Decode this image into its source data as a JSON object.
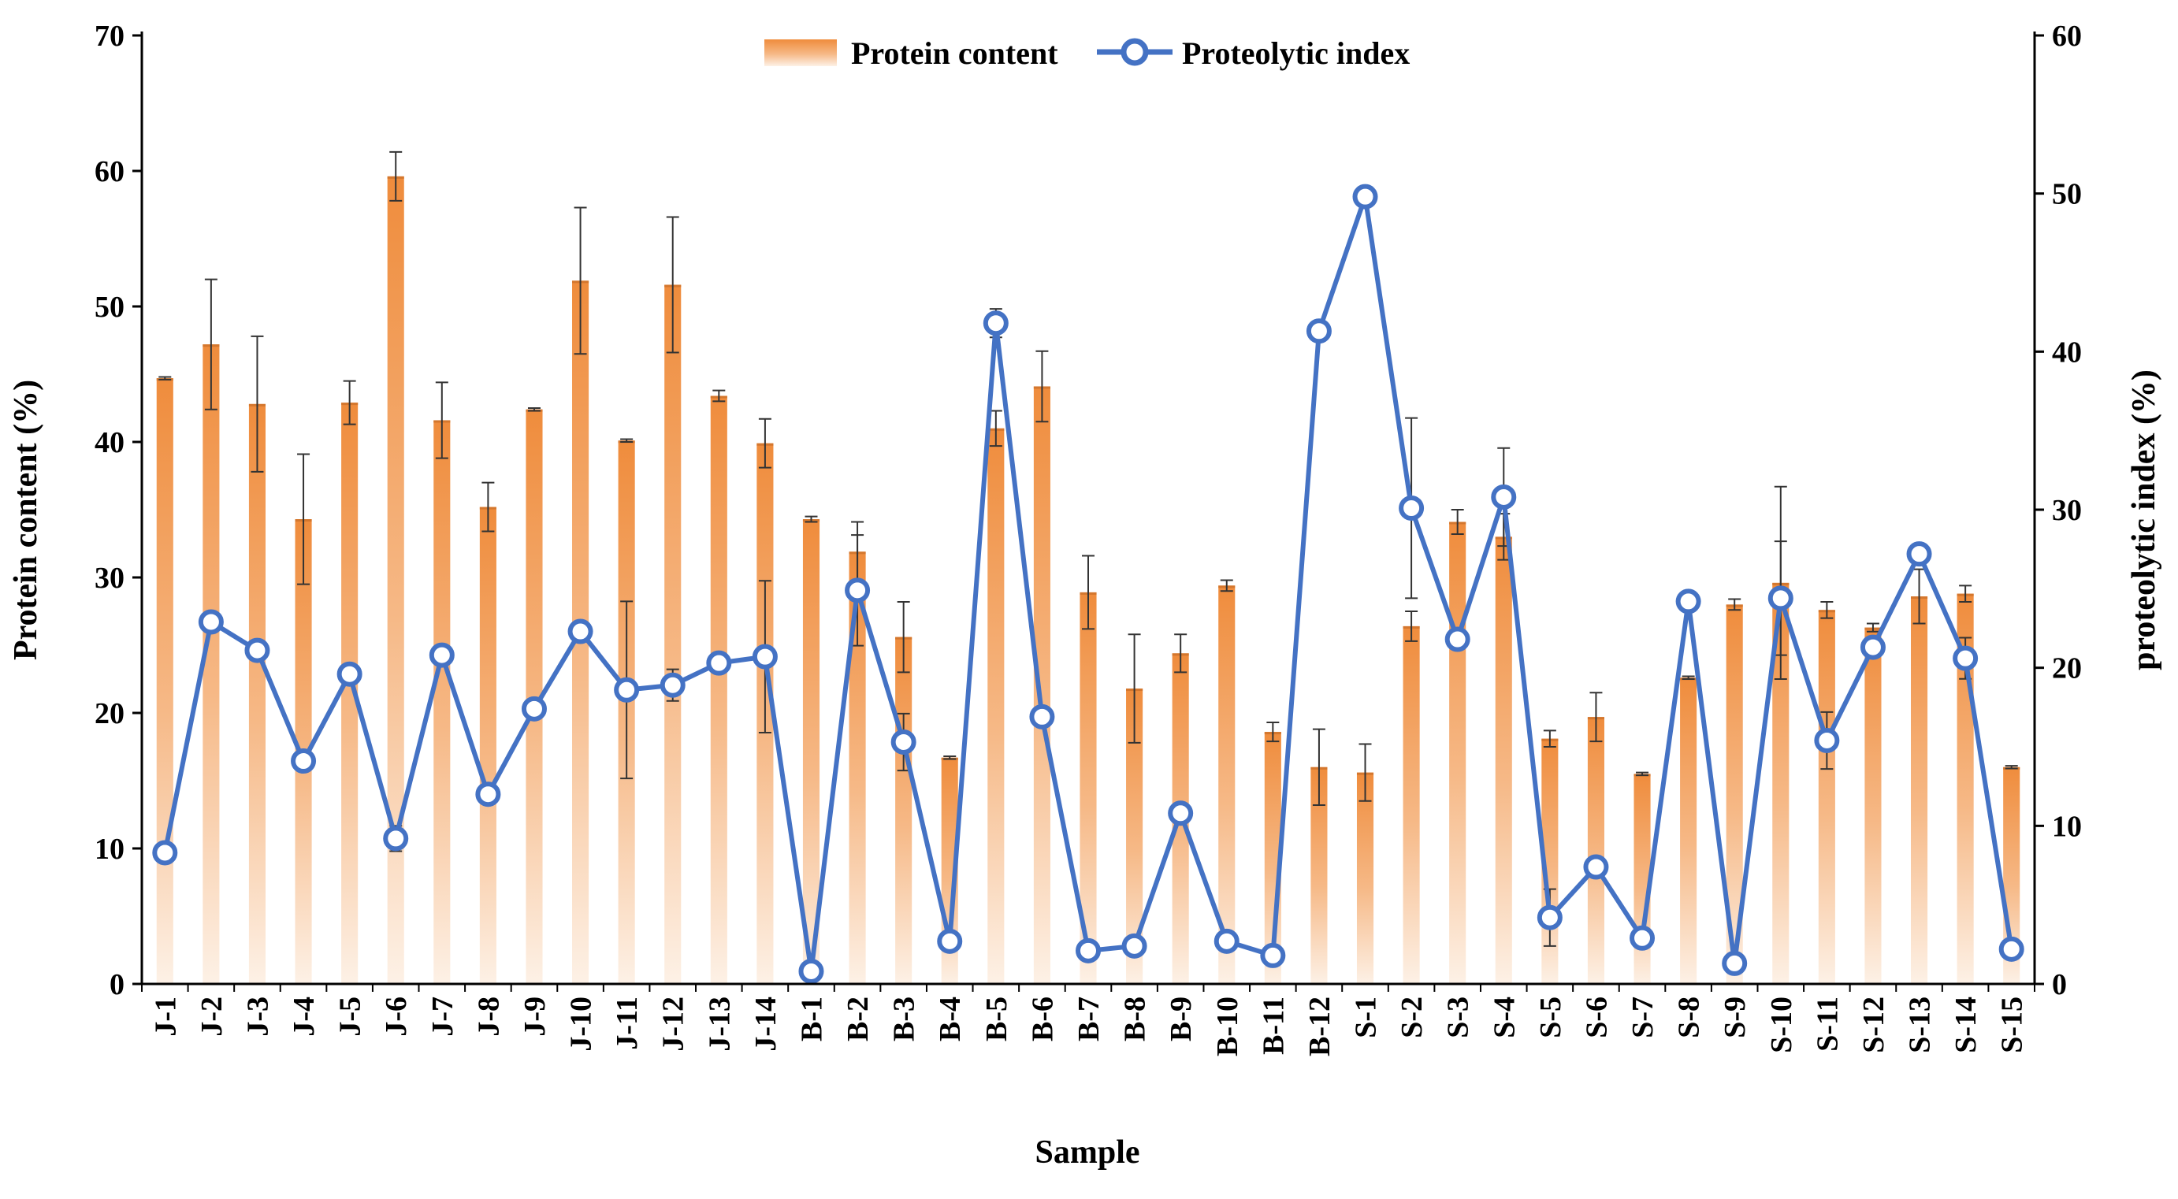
{
  "chart_data": {
    "type": "bar",
    "xlabel": "Sample",
    "ylabel": "Protein content (%)",
    "y2label": "proteolytic index (%)",
    "ylim": [
      0,
      70
    ],
    "y2lim": [
      0,
      60
    ],
    "yticks": [
      "0",
      "10",
      "20",
      "30",
      "40",
      "50",
      "60",
      "70"
    ],
    "y2ticks": [
      "0",
      "10",
      "20",
      "30",
      "40",
      "50",
      "60"
    ],
    "legend_position": "top-center",
    "categories": [
      "J-1",
      "J-2",
      "J-3",
      "J-4",
      "J-5",
      "J-6",
      "J-7",
      "J-8",
      "J-9",
      "J-10",
      "J-11",
      "J-12",
      "J-13",
      "J-14",
      "B-1",
      "B-2",
      "B-3",
      "B-4",
      "B-5",
      "B-6",
      "B-7",
      "B-8",
      "B-9",
      "B-10",
      "B-11",
      "B-12",
      "S-1",
      "S-2",
      "S-3",
      "S-4",
      "S-5",
      "S-6",
      "S-7",
      "S-8",
      "S-9",
      "S-10",
      "S-11",
      "S-12",
      "S-13",
      "S-14",
      "S-15"
    ],
    "series": [
      {
        "name": "Protein content",
        "type": "bar",
        "axis": "left",
        "color": "#f0964a",
        "values": [
          44.7,
          47.2,
          42.8,
          34.3,
          42.9,
          59.6,
          41.6,
          35.2,
          42.4,
          51.9,
          40.1,
          51.6,
          43.4,
          39.9,
          34.3,
          31.9,
          25.6,
          16.7,
          41.0,
          44.1,
          28.9,
          21.8,
          24.4,
          29.4,
          18.6,
          16.0,
          15.6,
          26.4,
          34.1,
          33.0,
          18.1,
          19.7,
          15.5,
          22.6,
          28.0,
          29.6,
          27.6,
          26.3,
          28.6,
          28.8,
          16.0
        ],
        "errors": [
          0.1,
          4.8,
          5.0,
          4.8,
          1.6,
          1.8,
          2.8,
          1.8,
          0.1,
          5.4,
          0.1,
          5.0,
          0.4,
          1.8,
          0.2,
          2.2,
          2.6,
          0.1,
          1.3,
          2.6,
          2.7,
          4.0,
          1.4,
          0.4,
          0.7,
          2.8,
          2.1,
          1.1,
          0.9,
          1.7,
          0.6,
          1.8,
          0.1,
          0.1,
          0.4,
          7.1,
          0.6,
          0.3,
          2.0,
          0.6,
          0.1
        ]
      },
      {
        "name": "Proteolytic index",
        "type": "line",
        "axis": "right",
        "color": "#4472c4",
        "values": [
          8.3,
          22.9,
          21.1,
          14.1,
          19.6,
          9.2,
          20.8,
          12.0,
          17.4,
          22.3,
          18.6,
          18.9,
          20.3,
          20.7,
          0.8,
          24.9,
          15.3,
          2.7,
          41.8,
          16.9,
          2.1,
          2.4,
          10.8,
          2.7,
          1.8,
          41.3,
          49.8,
          30.1,
          21.8,
          30.8,
          4.2,
          7.4,
          2.9,
          24.2,
          1.3,
          24.4,
          15.4,
          21.3,
          27.2,
          20.6,
          2.2
        ],
        "errors": [
          0.3,
          0.4,
          0.4,
          0.5,
          0.4,
          0.8,
          0.5,
          0.6,
          0.3,
          0.4,
          5.6,
          1.0,
          0.3,
          4.8,
          0.2,
          3.5,
          1.8,
          0.3,
          0.9,
          0.6,
          0.3,
          0.3,
          0.4,
          0.3,
          0.2,
          0.3,
          0.5,
          5.7,
          0.5,
          3.1,
          1.8,
          0.4,
          0.3,
          0.3,
          0.2,
          3.6,
          1.8,
          0.4,
          0.4,
          1.3,
          0.2
        ]
      }
    ]
  }
}
